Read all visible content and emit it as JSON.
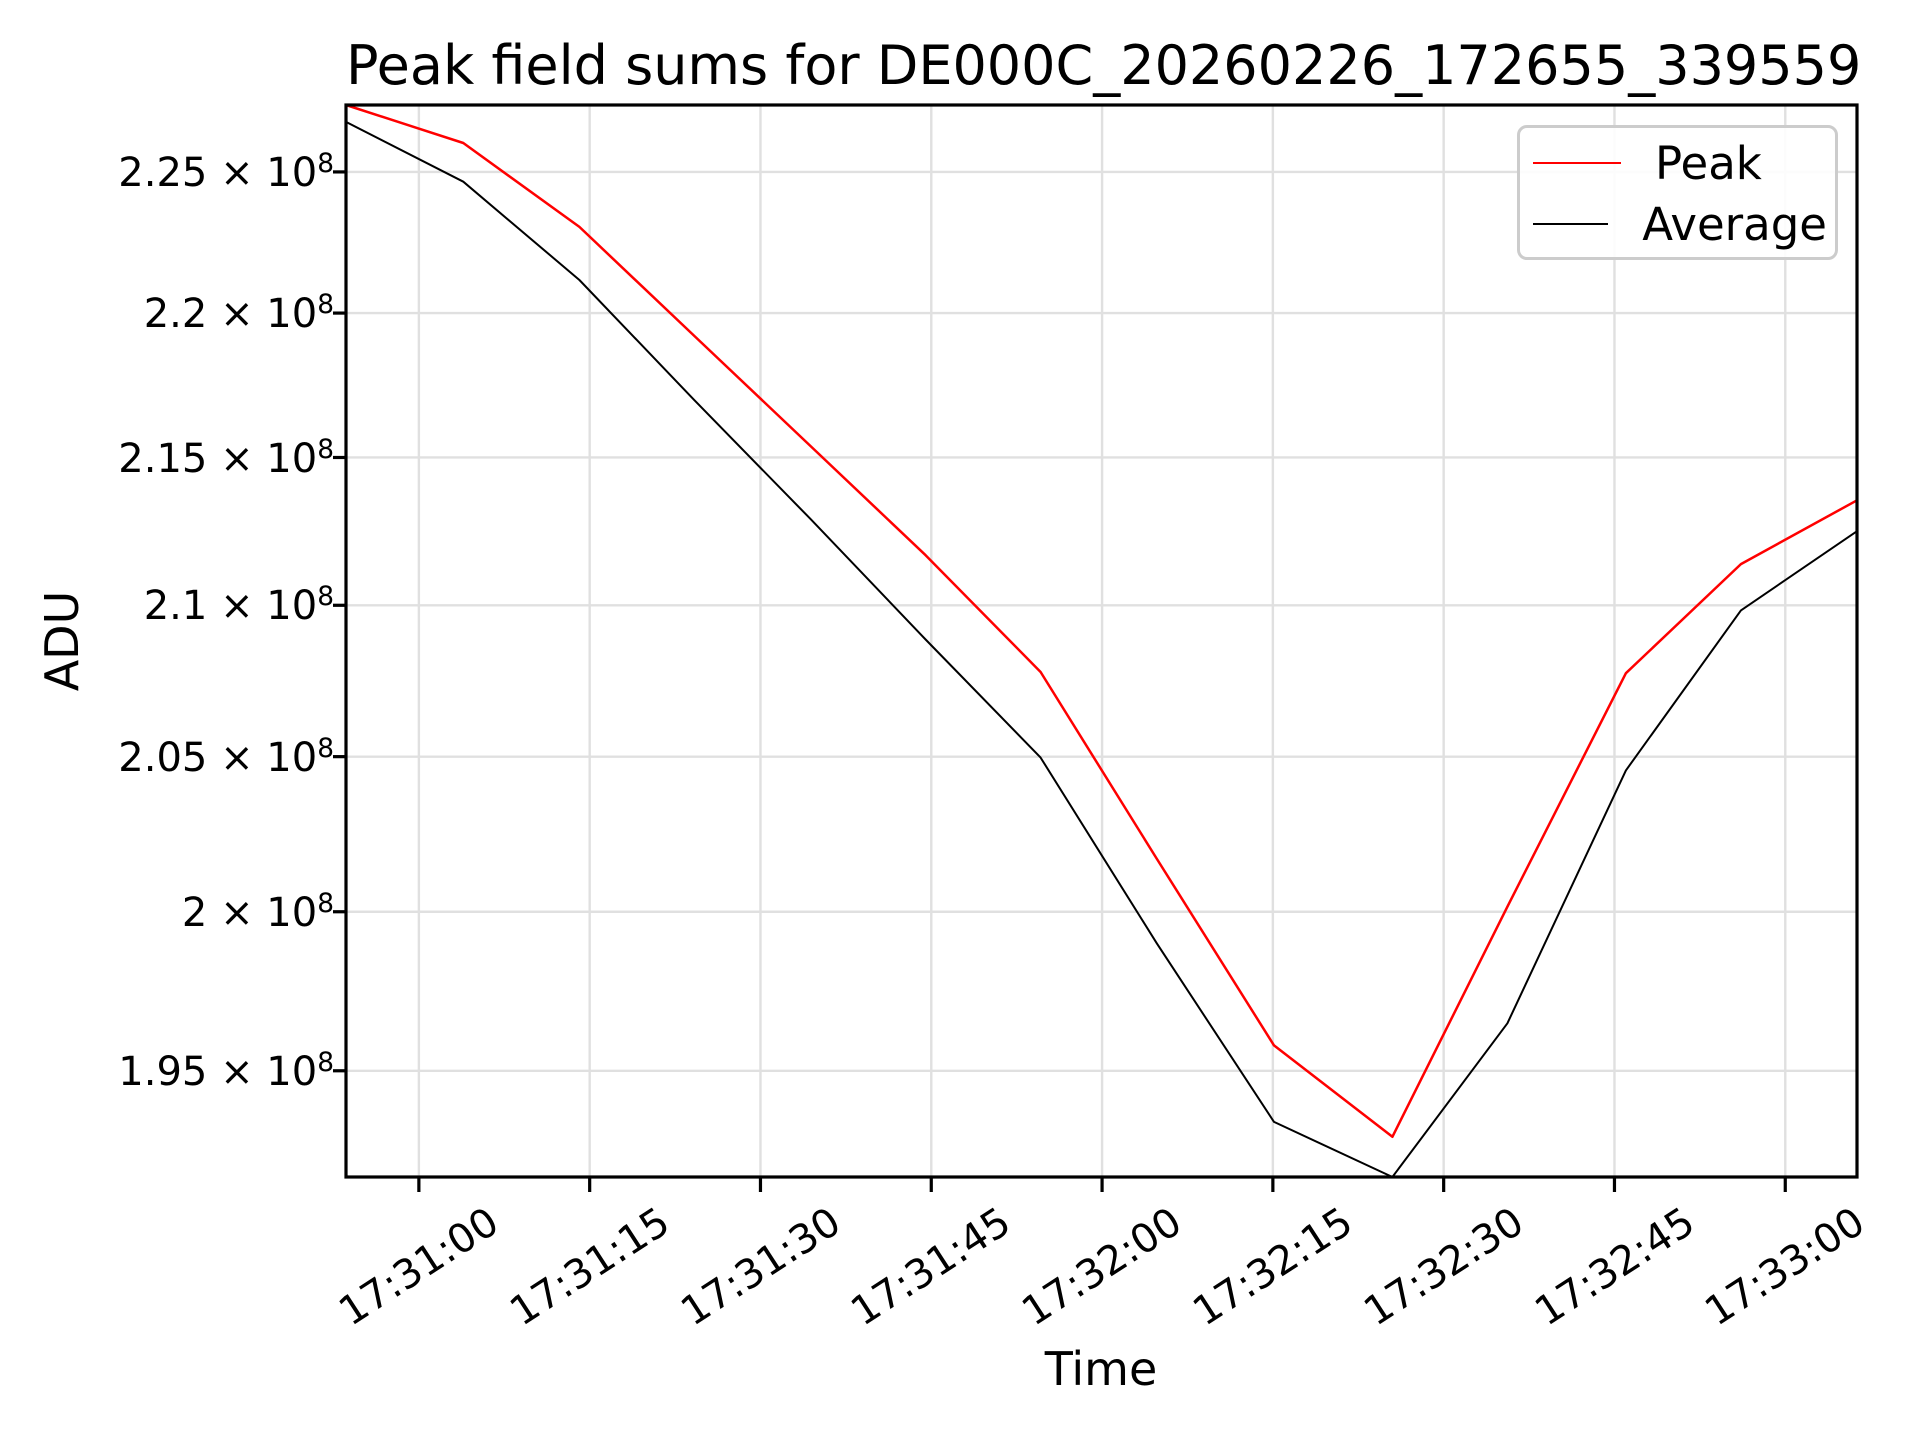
{
  "chart_data": {
    "type": "line",
    "title": "Peak field sums for DE000C_20260226_172655_339559",
    "xlabel": "Time",
    "ylabel": "ADU",
    "yscale": "log",
    "grid": true,
    "legend_position": "upper right",
    "background_color": "#ffffff",
    "grid_color": "#e0e0e0",
    "spine_color": "#000000",
    "xlim_seconds": [
      53.6,
      186.3
    ],
    "ylim": [
      191730000,
      227410000
    ],
    "x_seconds": [
      53.6,
      63.9,
      74.1,
      84.2,
      94.4,
      104.5,
      114.6,
      124.8,
      135.1,
      145.5,
      155.6,
      166.0,
      176.1,
      186.3
    ],
    "x_times": [
      "17:30:54",
      "17:31:04",
      "17:31:14",
      "17:31:24",
      "17:31:34",
      "17:31:45",
      "17:31:55",
      "17:32:05",
      "17:32:15",
      "17:32:26",
      "17:32:36",
      "17:32:46",
      "17:32:56",
      "17:33:06"
    ],
    "series": [
      {
        "name": "Peak",
        "color": "#ff0000",
        "line_width": 2.5,
        "values": [
          227410000,
          226040000,
          223040000,
          219200000,
          215390000,
          211680000,
          207780000,
          201700000,
          195790000,
          192960000,
          200160000,
          207740000,
          211380000,
          213540000
        ]
      },
      {
        "name": "Average",
        "color": "#000000",
        "line_width": 2.0,
        "values": [
          226800000,
          224650000,
          221160000,
          216970000,
          212900000,
          208860000,
          204970000,
          199000000,
          193420000,
          191730000,
          196480000,
          204550000,
          209830000,
          212490000
        ]
      }
    ],
    "x_ticks": [
      {
        "t": 60,
        "label": "17:31:00"
      },
      {
        "t": 75,
        "label": "17:31:15"
      },
      {
        "t": 90,
        "label": "17:31:30"
      },
      {
        "t": 105,
        "label": "17:31:45"
      },
      {
        "t": 120,
        "label": "17:32:00"
      },
      {
        "t": 135,
        "label": "17:32:15"
      },
      {
        "t": 150,
        "label": "17:32:30"
      },
      {
        "t": 165,
        "label": "17:32:45"
      },
      {
        "t": 180,
        "label": "17:33:00"
      }
    ],
    "y_ticks": [
      {
        "value": 225000000,
        "label": "2.25 × 10^8"
      },
      {
        "value": 220000000,
        "label": "2.2 × 10^8"
      },
      {
        "value": 215000000,
        "label": "2.15 × 10^8"
      },
      {
        "value": 210000000,
        "label": "2.1 × 10^8"
      },
      {
        "value": 205000000,
        "label": "2.05 × 10^8"
      },
      {
        "value": 200000000,
        "label": "2 × 10^8"
      },
      {
        "value": 195000000,
        "label": "1.95 × 10^8"
      }
    ]
  }
}
